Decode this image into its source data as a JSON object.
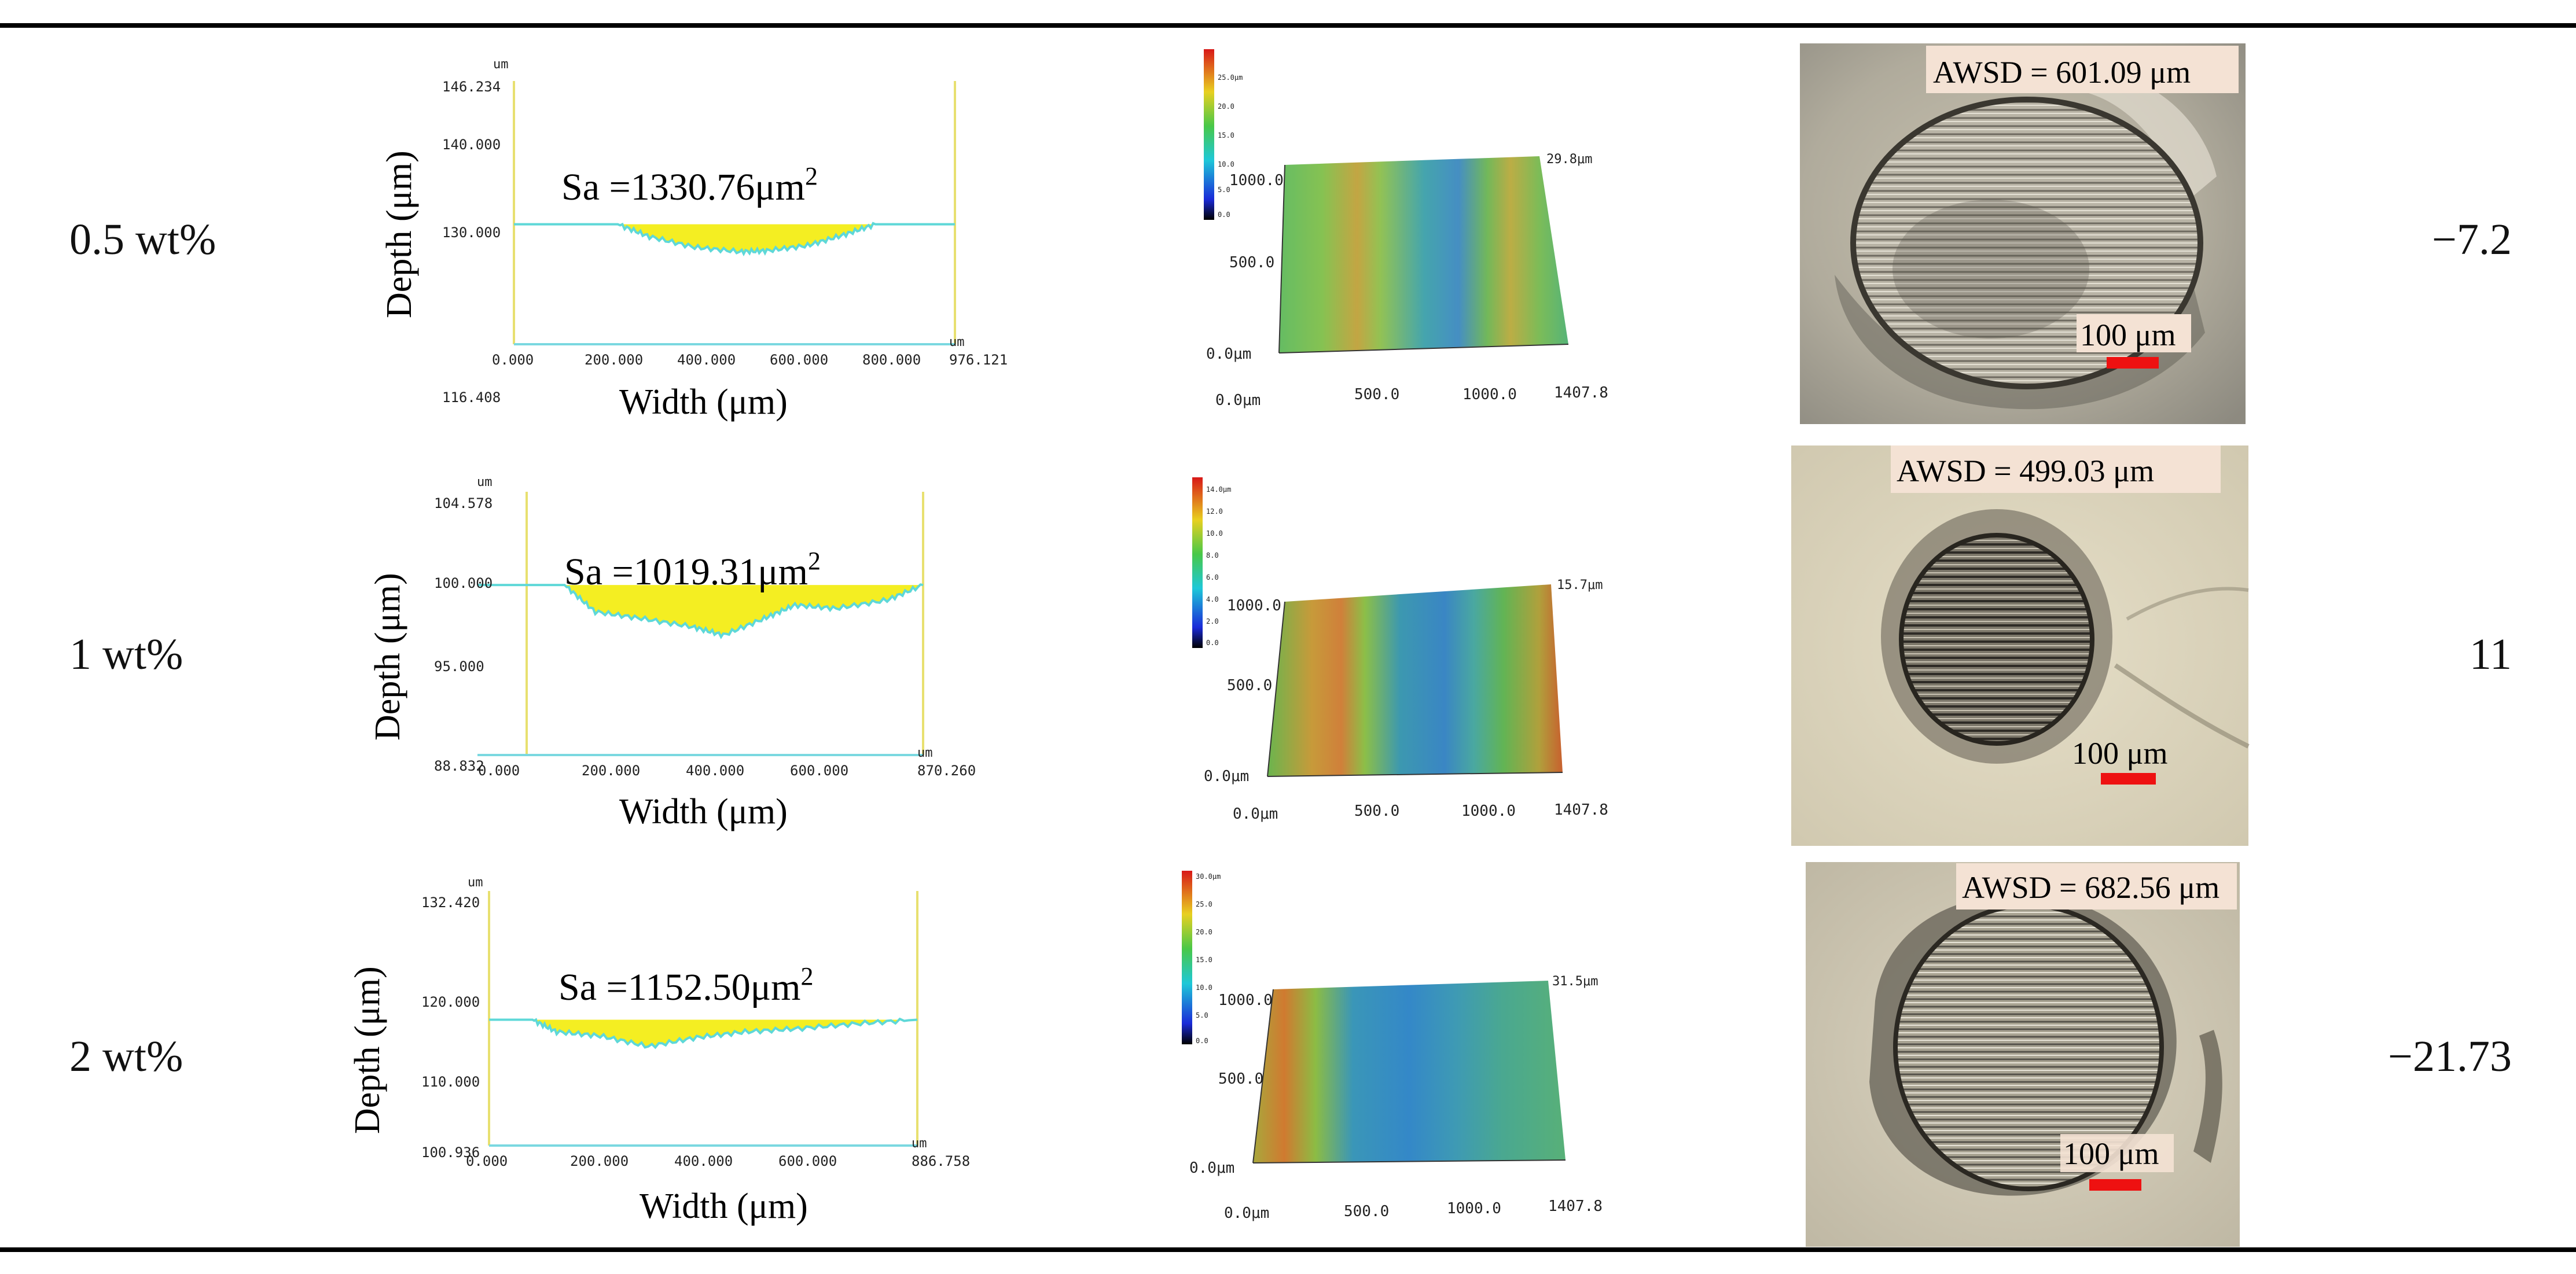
{
  "rows": [
    {
      "label": "0.5 wt%",
      "value": "−7.2",
      "profile": {
        "sa_label": "Sa =1330.76",
        "sa_unit": "μm",
        "sa_exp": "2",
        "depth_label": "Depth (μm)",
        "width_label": "Width (μm)",
        "y_ticks": [
          "146.234",
          "140.000",
          "130.000",
          "116.408"
        ],
        "x_ticks": [
          "0.000",
          "200.000",
          "400.000",
          "600.000",
          "800.000",
          "976.121"
        ],
        "unit_tag": "um",
        "baseline_value": 130.0,
        "y_range": [
          116.408,
          146.234
        ],
        "x_range": [
          0,
          976.121
        ],
        "depth_series": [
          {
            "x": 0,
            "depth": 130.0
          },
          {
            "x": 230,
            "depth": 130.0
          },
          {
            "x": 300,
            "depth": 128.6
          },
          {
            "x": 400,
            "depth": 127.4
          },
          {
            "x": 500,
            "depth": 126.9
          },
          {
            "x": 560,
            "depth": 127.0
          },
          {
            "x": 650,
            "depth": 127.6
          },
          {
            "x": 730,
            "depth": 128.8
          },
          {
            "x": 800,
            "depth": 130.0
          },
          {
            "x": 976.121,
            "depth": 130.0
          }
        ]
      },
      "surface": {
        "scale_max": "29.8μm",
        "y_ticks": [
          "1000.0",
          "500.0",
          "0.0μm"
        ],
        "x_ticks": [
          "0.0μm",
          "500.0",
          "1000.0",
          "1407.8"
        ],
        "legend_ticks": [
          "25.0μm",
          "20.0",
          "15.0",
          "10.0",
          "5.0",
          "0.0"
        ]
      },
      "micro": {
        "awsd": "AWSD = 601.09 μm",
        "scale": "100 μm"
      }
    },
    {
      "label": "1 wt%",
      "value": "11",
      "profile": {
        "sa_label": "Sa =1019.31",
        "sa_unit": "μm",
        "sa_exp": "2",
        "depth_label": "Depth (μm)",
        "width_label": "Width (μm)",
        "y_ticks": [
          "104.578",
          "100.000",
          "95.000",
          "88.832"
        ],
        "x_ticks": [
          "0.000",
          "200.000",
          "400.000",
          "600.000",
          "870.260"
        ],
        "unit_tag": "um",
        "baseline_value": 99.0,
        "y_range": [
          88.832,
          104.578
        ],
        "x_range": [
          0,
          870.26
        ],
        "depth_series": [
          {
            "x": 0,
            "depth": 99.0
          },
          {
            "x": 170,
            "depth": 99.0
          },
          {
            "x": 230,
            "depth": 97.4
          },
          {
            "x": 320,
            "depth": 97.0
          },
          {
            "x": 420,
            "depth": 96.5
          },
          {
            "x": 480,
            "depth": 96.0
          },
          {
            "x": 560,
            "depth": 97.0
          },
          {
            "x": 620,
            "depth": 97.8
          },
          {
            "x": 700,
            "depth": 97.6
          },
          {
            "x": 800,
            "depth": 98.1
          },
          {
            "x": 870.26,
            "depth": 99.0
          }
        ]
      },
      "surface": {
        "scale_max": "15.7μm",
        "y_ticks": [
          "1000.0",
          "500.0",
          "0.0μm"
        ],
        "x_ticks": [
          "0.0μm",
          "500.0",
          "1000.0",
          "1407.8"
        ],
        "legend_ticks": [
          "14.0μm",
          "12.0",
          "10.0",
          "8.0",
          "6.0",
          "4.0",
          "2.0",
          "0.0"
        ]
      },
      "micro": {
        "awsd": "AWSD = 499.03 μm",
        "scale": "100 μm"
      }
    },
    {
      "label": "2 wt%",
      "value": "−21.73",
      "profile": {
        "sa_label": "Sa =1152.50",
        "sa_unit": "μm",
        "sa_exp": "2",
        "depth_label": "Depth (μm)",
        "width_label": "Width (μm)",
        "y_ticks": [
          "132.420",
          "120.000",
          "110.000",
          "100.936"
        ],
        "x_ticks": [
          "0.000",
          "200.000",
          "400.000",
          "600.000",
          "886.758"
        ],
        "unit_tag": "um",
        "baseline_value": 116.5,
        "y_range": [
          100.936,
          132.42
        ],
        "x_range": [
          0,
          886.758
        ],
        "depth_series": [
          {
            "x": 0,
            "depth": 116.5
          },
          {
            "x": 90,
            "depth": 116.5
          },
          {
            "x": 140,
            "depth": 115.0
          },
          {
            "x": 230,
            "depth": 114.5
          },
          {
            "x": 330,
            "depth": 113.2
          },
          {
            "x": 430,
            "depth": 114.3
          },
          {
            "x": 530,
            "depth": 115.0
          },
          {
            "x": 640,
            "depth": 115.4
          },
          {
            "x": 760,
            "depth": 116.0
          },
          {
            "x": 886.758,
            "depth": 116.5
          }
        ]
      },
      "surface": {
        "scale_max": "31.5μm",
        "y_ticks": [
          "1000.0",
          "500.0",
          "0.0μm"
        ],
        "x_ticks": [
          "0.0μm",
          "500.0",
          "1000.0",
          "1407.8"
        ],
        "legend_ticks": [
          "30.0μm",
          "25.0",
          "20.0",
          "15.0",
          "10.0",
          "5.0",
          "0.0"
        ]
      },
      "micro": {
        "awsd": "AWSD = 682.56 μm",
        "scale": "100 μm"
      }
    }
  ]
}
